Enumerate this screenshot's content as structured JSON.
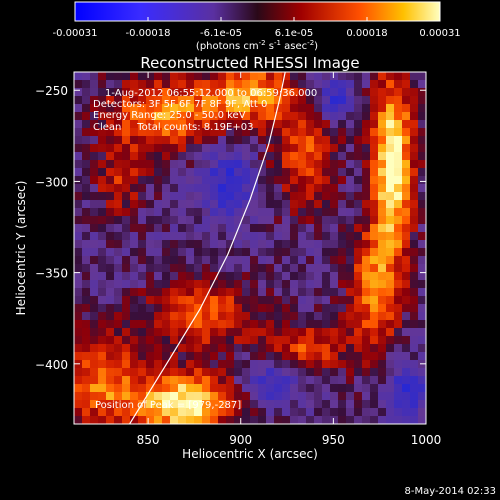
{
  "chart_data": {
    "type": "heatmap",
    "title": "Reconstructed RHESSI Image",
    "xlabel": "Heliocentric X (arcsec)",
    "ylabel": "Heliocentric Y (arcsec)",
    "xlim": [
      810,
      1000
    ],
    "ylim": [
      -433,
      -240
    ],
    "x_ticks": [
      850,
      900,
      950,
      1000
    ],
    "y_ticks": [
      -250,
      -300,
      -350,
      -400
    ],
    "colorbar": {
      "ticks": [
        "-0.00031",
        "-0.00018",
        "-6.1e-05",
        "6.1e-05",
        "0.00018",
        "0.00031"
      ],
      "unit_main": "(photons cm",
      "unit_sup1": "-2",
      "unit_s": " s",
      "unit_sup2": "-1",
      "unit_asec": " asec",
      "unit_sup3": "-2",
      "unit_close": ")",
      "range": [
        -0.00031,
        0.00031
      ]
    },
    "annotations": [
      "1-Aug-2012 06:55:12.000 to 06:59:36.000",
      "Detectors: 3F 5F 6F 7F 8F 9F, Att 0",
      "Energy Range: 25.0 - 50.0 keV",
      "Clean     Total counts: 8.19E+03"
    ],
    "position_label": "Position of Peak = [979,-287]",
    "limb_curve": [
      [
        840,
        -433
      ],
      [
        860,
        -400
      ],
      [
        878,
        -370
      ],
      [
        893,
        -340
      ],
      [
        905,
        -310
      ],
      [
        915,
        -280
      ],
      [
        921,
        -255
      ],
      [
        924,
        -240
      ]
    ],
    "bright_regions": [
      {
        "x": 982,
        "y": -290,
        "sx": 8,
        "sy": 35,
        "level": 0.9
      },
      {
        "x": 972,
        "y": -360,
        "sx": 10,
        "sy": 25,
        "level": 0.55
      },
      {
        "x": 870,
        "y": -422,
        "sx": 18,
        "sy": 12,
        "level": 0.9
      },
      {
        "x": 825,
        "y": -410,
        "sx": 15,
        "sy": 20,
        "level": 0.55
      },
      {
        "x": 858,
        "y": -263,
        "sx": 22,
        "sy": 14,
        "level": 0.6
      },
      {
        "x": 905,
        "y": -252,
        "sx": 16,
        "sy": 12,
        "level": 0.65
      },
      {
        "x": 880,
        "y": -372,
        "sx": 20,
        "sy": 14,
        "level": 0.5
      },
      {
        "x": 935,
        "y": -285,
        "sx": 12,
        "sy": 22,
        "level": 0.45
      },
      {
        "x": 935,
        "y": -392,
        "sx": 16,
        "sy": 10,
        "level": 0.45
      },
      {
        "x": 835,
        "y": -300,
        "sx": 10,
        "sy": 14,
        "level": 0.35
      }
    ],
    "dark_regions": [
      {
        "x": 893,
        "y": -300,
        "sx": 10,
        "sy": 14
      },
      {
        "x": 950,
        "y": -255,
        "sx": 8,
        "sy": 8
      },
      {
        "x": 990,
        "y": -415,
        "sx": 8,
        "sy": 10
      },
      {
        "x": 918,
        "y": -410,
        "sx": 10,
        "sy": 8
      }
    ]
  },
  "footer": {
    "date": "8-May-2014 02:33"
  }
}
